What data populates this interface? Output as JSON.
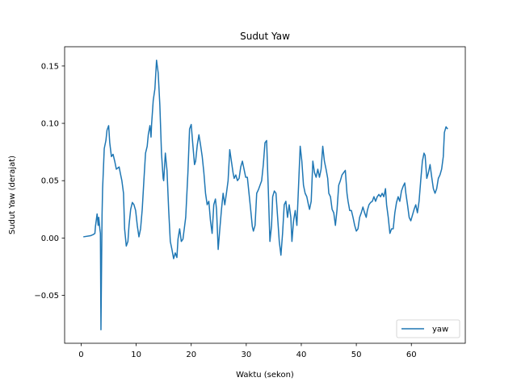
{
  "chart_data": {
    "type": "line",
    "title": "Sudut Yaw",
    "xlabel": "Waktu (sekon)",
    "ylabel": "Sudut Yaw (derajat)",
    "x": [
      0.4,
      1.7,
      2.2,
      2.5,
      2.6,
      2.9,
      3.1,
      3.2,
      3.4,
      3.5,
      3.6,
      3.8,
      3.9,
      4.2,
      4.5,
      4.7,
      5.0,
      5.2,
      5.5,
      5.8,
      6.1,
      6.4,
      6.9,
      7.1,
      7.4,
      7.7,
      7.9,
      8.2,
      8.5,
      8.7,
      9.0,
      9.3,
      9.6,
      9.9,
      10.2,
      10.5,
      10.8,
      11.1,
      11.4,
      11.7,
      12.0,
      12.2,
      12.5,
      12.7,
      12.8,
      13.1,
      13.4,
      13.7,
      14.0,
      14.3,
      14.6,
      14.9,
      15.0,
      15.3,
      15.6,
      15.9,
      16.2,
      16.5,
      16.8,
      17.1,
      17.4,
      17.6,
      17.9,
      18.2,
      18.5,
      19.0,
      19.4,
      19.7,
      20.0,
      20.3,
      20.6,
      20.8,
      21.1,
      21.4,
      21.7,
      22.0,
      22.3,
      22.6,
      22.9,
      23.2,
      23.5,
      23.8,
      24.1,
      24.4,
      24.6,
      24.9,
      25.2,
      25.5,
      25.8,
      26.1,
      26.4,
      26.7,
      27.0,
      27.3,
      27.6,
      27.8,
      28.1,
      28.4,
      28.7,
      29.0,
      29.3,
      29.6,
      29.9,
      30.2,
      30.5,
      30.8,
      31.1,
      31.3,
      31.6,
      31.9,
      32.2,
      32.5,
      32.8,
      33.1,
      33.4,
      33.7,
      34.0,
      34.3,
      34.6,
      34.8,
      35.1,
      35.4,
      35.7,
      36.0,
      36.3,
      36.6,
      36.9,
      37.2,
      37.5,
      37.8,
      38.1,
      38.3,
      38.6,
      38.9,
      39.2,
      39.5,
      39.8,
      40.1,
      40.4,
      40.7,
      41.0,
      41.3,
      41.5,
      41.8,
      42.1,
      42.4,
      42.7,
      43.0,
      43.3,
      43.6,
      43.9,
      44.2,
      44.5,
      44.8,
      45.0,
      45.3,
      45.6,
      45.9,
      46.2,
      46.5,
      46.8,
      47.1,
      47.4,
      47.7,
      48.0,
      48.3,
      48.5,
      48.8,
      49.1,
      49.4,
      49.7,
      50.0,
      50.3,
      50.6,
      50.9,
      51.2,
      51.5,
      51.8,
      52.0,
      52.3,
      52.6,
      52.9,
      53.2,
      53.5,
      53.8,
      54.1,
      54.4,
      54.7,
      55.0,
      55.3,
      55.5,
      55.8,
      56.1,
      56.4,
      56.7,
      57.0,
      57.3,
      57.6,
      57.9,
      58.2,
      58.5,
      58.8,
      59.0,
      59.3,
      59.6,
      59.9,
      60.2,
      60.5,
      60.8,
      61.1,
      61.4,
      61.7,
      62.0,
      62.3,
      62.5,
      62.8,
      63.1,
      63.4,
      63.7,
      64.0,
      64.3,
      64.6,
      64.9,
      65.2,
      65.5,
      65.8,
      66.0,
      66.3,
      66.6
    ],
    "series": [
      {
        "name": "yaw",
        "color": "#1f77b4",
        "values": [
          0.001,
          0.002,
          0.003,
          0.004,
          0.01,
          0.021,
          0.011,
          0.018,
          0.008,
          0.004,
          -0.08,
          0.02,
          0.043,
          0.078,
          0.085,
          0.094,
          0.098,
          0.083,
          0.071,
          0.073,
          0.067,
          0.06,
          0.062,
          0.057,
          0.05,
          0.039,
          0.008,
          -0.007,
          -0.003,
          0.011,
          0.025,
          0.031,
          0.029,
          0.024,
          0.011,
          0.001,
          0.008,
          0.025,
          0.05,
          0.074,
          0.08,
          0.09,
          0.098,
          0.088,
          0.099,
          0.12,
          0.13,
          0.155,
          0.144,
          0.116,
          0.074,
          0.052,
          0.05,
          0.074,
          0.059,
          0.025,
          -0.003,
          -0.01,
          -0.018,
          -0.013,
          -0.017,
          -0.001,
          0.008,
          -0.003,
          -0.001,
          0.018,
          0.057,
          0.095,
          0.099,
          0.081,
          0.064,
          0.067,
          0.081,
          0.09,
          0.081,
          0.071,
          0.057,
          0.039,
          0.029,
          0.032,
          0.015,
          0.004,
          0.029,
          0.034,
          0.025,
          -0.01,
          0.008,
          0.025,
          0.039,
          0.029,
          0.039,
          0.05,
          0.077,
          0.067,
          0.057,
          0.052,
          0.055,
          0.05,
          0.052,
          0.062,
          0.067,
          0.06,
          0.053,
          0.053,
          0.039,
          0.025,
          0.01,
          0.006,
          0.011,
          0.039,
          0.042,
          0.046,
          0.05,
          0.064,
          0.083,
          0.085,
          0.043,
          -0.003,
          0.011,
          0.036,
          0.041,
          0.039,
          0.018,
          -0.003,
          -0.015,
          0.004,
          0.029,
          0.032,
          0.018,
          0.029,
          0.018,
          -0.003,
          0.015,
          0.024,
          0.011,
          0.045,
          0.08,
          0.067,
          0.046,
          0.039,
          0.036,
          0.029,
          0.025,
          0.032,
          0.067,
          0.057,
          0.053,
          0.06,
          0.053,
          0.06,
          0.08,
          0.067,
          0.06,
          0.052,
          0.039,
          0.036,
          0.025,
          0.022,
          0.011,
          0.025,
          0.046,
          0.05,
          0.055,
          0.057,
          0.059,
          0.039,
          0.032,
          0.024,
          0.024,
          0.018,
          0.011,
          0.006,
          0.008,
          0.018,
          0.022,
          0.027,
          0.022,
          0.018,
          0.024,
          0.029,
          0.031,
          0.032,
          0.036,
          0.032,
          0.036,
          0.038,
          0.036,
          0.039,
          0.036,
          0.043,
          0.029,
          0.018,
          0.004,
          0.008,
          0.008,
          0.022,
          0.031,
          0.036,
          0.032,
          0.041,
          0.045,
          0.048,
          0.039,
          0.029,
          0.018,
          0.015,
          0.02,
          0.025,
          0.029,
          0.022,
          0.032,
          0.05,
          0.067,
          0.074,
          0.072,
          0.052,
          0.057,
          0.064,
          0.053,
          0.043,
          0.039,
          0.043,
          0.052,
          0.055,
          0.06,
          0.071,
          0.092,
          0.097,
          0.095
        ]
      }
    ],
    "xlim": [
      -3.0,
      69.8
    ],
    "xticks": [
      0,
      10,
      20,
      30,
      40,
      50,
      60
    ],
    "ylim": [
      -0.0918,
      0.1668
    ],
    "yticks": [
      {
        "value": -0.05,
        "label": "−0.05"
      },
      {
        "value": 0,
        "label": "0.00"
      },
      0.05,
      {
        "value": 0.1,
        "label": "0.10"
      },
      0.15
    ],
    "legend": "lower right"
  }
}
